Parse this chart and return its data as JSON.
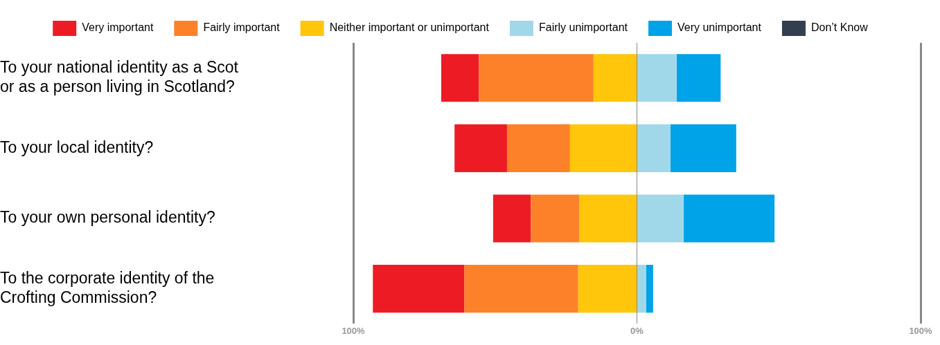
{
  "chart_data": {
    "type": "bar",
    "orientation": "horizontal",
    "stacked": true,
    "categories": [
      "To your national identity as a Scot or as a person living in Scotland?",
      "To your local identity?",
      "To your own personal identity?",
      "To the corporate identity of the Crofting Commission?"
    ],
    "series": [
      {
        "name": "Neither important or unimportant",
        "color": "#ffc60b",
        "values": [
          -15.3,
          -23.6,
          -20.4,
          -20.7
        ]
      },
      {
        "name": "Fairly important",
        "color": "#fd8128",
        "values": [
          -40.4,
          -22.2,
          -17.0,
          -40.1
        ]
      },
      {
        "name": "Very important",
        "color": "#ed1c24",
        "values": [
          -13.3,
          -18.5,
          -13.3,
          -32.3
        ]
      },
      {
        "name": "Fairly unimportant",
        "color": "#a0d8ea",
        "values": [
          14.0,
          11.8,
          16.5,
          3.2
        ]
      },
      {
        "name": "Very unimportant",
        "color": "#00a2e8",
        "values": [
          15.5,
          23.2,
          32.0,
          2.5
        ]
      },
      {
        "name": "Don’t Know",
        "color": "#323f4f",
        "values": [
          0,
          0,
          0,
          0
        ]
      }
    ],
    "xlim": [
      -100,
      100
    ],
    "xticks": [
      {
        "value": -100,
        "label": "100%"
      },
      {
        "value": 0,
        "label": "0%"
      },
      {
        "value": 100,
        "label": "100%"
      }
    ],
    "grid": "x",
    "legend": "top"
  }
}
